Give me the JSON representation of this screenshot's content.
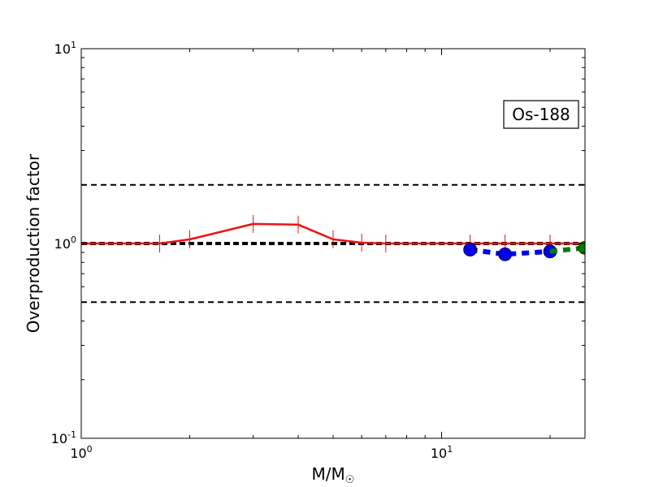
{
  "chart_data": {
    "type": "line",
    "xlabel": "M/M",
    "xlabel_symbol": "☉",
    "ylabel": "Overproduction factor",
    "xscale": "log",
    "yscale": "log",
    "xlim": [
      1,
      25
    ],
    "ylim": [
      0.1,
      10
    ],
    "grid": false,
    "annotation": "Os-188",
    "annotation_position": "top-right",
    "reference_lines": [
      {
        "y": 2.0,
        "style": "dashed",
        "color": "#000000"
      },
      {
        "y": 1.0,
        "style": "dashed-thick",
        "color": "#000000"
      },
      {
        "y": 0.5,
        "style": "dashed",
        "color": "#000000"
      }
    ],
    "x_ticks": [
      {
        "value": 1,
        "base": "10",
        "exp": "0"
      },
      {
        "value": 10,
        "base": "10",
        "exp": "1"
      }
    ],
    "y_ticks": [
      {
        "value": 0.1,
        "base": "10",
        "exp": "-1"
      },
      {
        "value": 1,
        "base": "10",
        "exp": "0"
      },
      {
        "value": 10,
        "base": "10",
        "exp": "1"
      }
    ],
    "series": [
      {
        "style": "line-with-errorbars",
        "color": "#ee1111",
        "x": [
          1.0,
          1.65,
          2.0,
          3.0,
          4.0,
          5.0,
          6.0,
          7.0,
          12.0,
          15.0,
          20.0,
          25.0
        ],
        "y": [
          1.0,
          1.0,
          1.05,
          1.26,
          1.25,
          1.05,
          1.01,
          1.0,
          1.0,
          1.0,
          1.0,
          1.0
        ],
        "errorbar_x": [
          1.65,
          2.0,
          3.0,
          4.0,
          5.0,
          6.0,
          7.0,
          12.0,
          15.0,
          20.0
        ]
      },
      {
        "style": "dashed-markers",
        "color": "#0000ee",
        "x": [
          12.0,
          15.0,
          20.0
        ],
        "y": [
          0.93,
          0.88,
          0.91
        ]
      },
      {
        "style": "dashed-markers",
        "color": "#008000",
        "x": [
          20.0,
          25.0
        ],
        "y": [
          0.91,
          0.95
        ],
        "marker_x": [
          25.0
        ]
      }
    ]
  }
}
